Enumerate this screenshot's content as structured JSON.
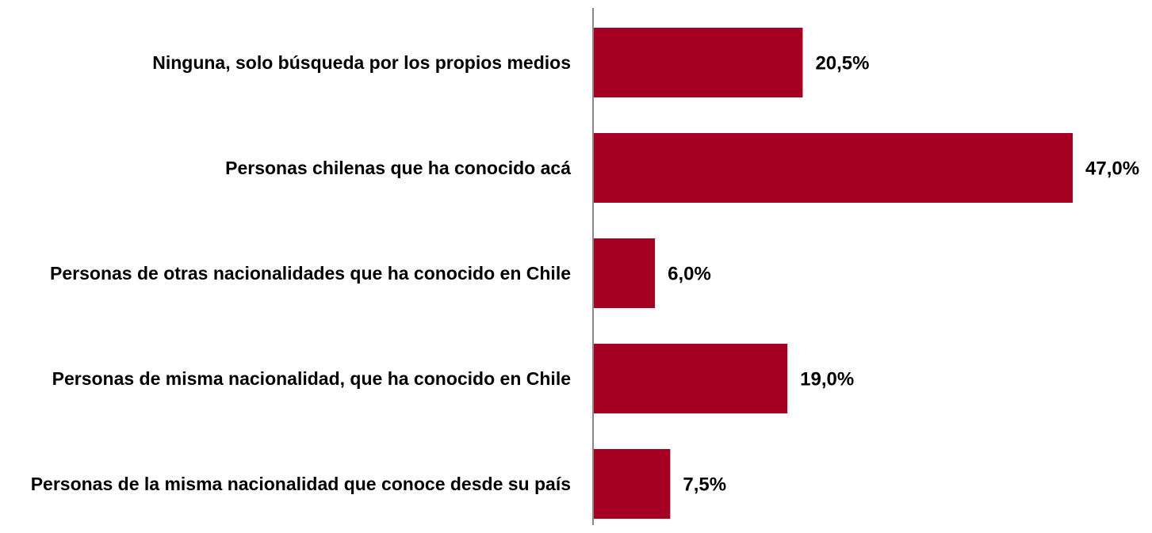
{
  "chart_data": {
    "type": "bar",
    "orientation": "horizontal",
    "categories": [
      "Ninguna, solo búsqueda por los propios medios",
      "Personas chilenas que ha conocido acá",
      "Personas de otras nacionalidades que ha conocido en Chile",
      "Personas de misma nacionalidad, que ha conocido en Chile",
      "Personas de la misma nacionalidad que conoce desde su país"
    ],
    "values": [
      20.5,
      47.0,
      6.0,
      19.0,
      7.5
    ],
    "value_labels": [
      "20,5%",
      "47,0%",
      "6,0%",
      "19,0%",
      "7,5%"
    ],
    "color": "#a50021"
  }
}
